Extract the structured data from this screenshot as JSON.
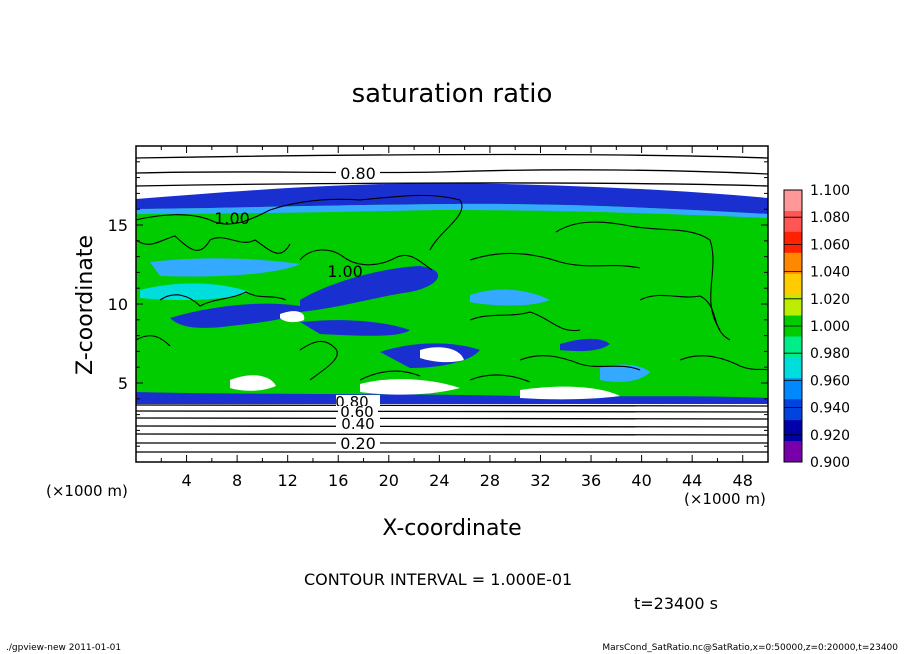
{
  "chart_data": {
    "type": "heatmap",
    "title": "saturation ratio",
    "xlabel": "X-coordinate",
    "ylabel": "Z-coordinate",
    "x_unit_left": "(×1000 m)",
    "x_unit_right": "(×1000 m)",
    "xlim": [
      0,
      50
    ],
    "ylim": [
      0,
      20
    ],
    "x_ticks": [
      4,
      8,
      12,
      16,
      20,
      24,
      28,
      32,
      36,
      40,
      44,
      48
    ],
    "y_ticks": [
      5,
      10,
      15
    ],
    "colorbar": {
      "levels": [
        "1.100",
        "1.080",
        "1.060",
        "1.040",
        "1.020",
        "1.000",
        "0.980",
        "0.960",
        "0.940",
        "0.920",
        "0.900"
      ],
      "colors": [
        "#ff9999",
        "#ff5555",
        "#ff2200",
        "#ff8800",
        "#ffcc00",
        "#bbee00",
        "#00cc00",
        "#00ee88",
        "#00dddd",
        "#0088ff",
        "#0044dd",
        "#0000aa",
        "#7700aa"
      ]
    },
    "contour_labels": [
      "0.80",
      "1.00",
      "1.00",
      "0.80",
      "0.60",
      "0.40",
      "0.20"
    ],
    "contour_interval_text": "CONTOUR INTERVAL = 1.000E-01",
    "time_text": "t=23400 s",
    "footer_left": "./gpview-new  2011-01-01",
    "footer_right": "MarsCond_SatRatio.nc@SatRatio,x=0:50000,z=0:20000,t=23400",
    "colors": {
      "green": "#00cc00",
      "deep_blue": "#1a2fd0",
      "light_blue": "#33aaff",
      "cyan": "#00dddd"
    }
  }
}
